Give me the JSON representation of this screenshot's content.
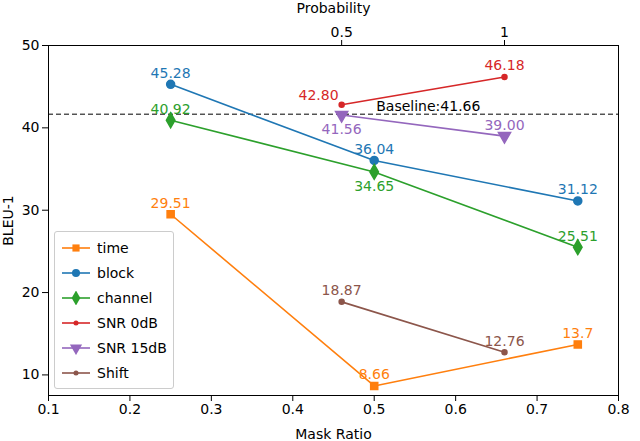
{
  "chart_data": {
    "type": "line",
    "x_label": "Mask Ratio",
    "x2_label": "Probability",
    "y_label": "BLEU-1",
    "xlim": [
      0.1,
      0.8
    ],
    "xticks": [
      0.1,
      0.2,
      0.3,
      0.4,
      0.5,
      0.6,
      0.7,
      0.8
    ],
    "x2lim": [
      -0.4,
      1.35
    ],
    "x2ticks": [
      0.5,
      1
    ],
    "ylim": [
      7.5,
      50
    ],
    "yticks": [
      10,
      20,
      30,
      40,
      50
    ],
    "grid": false,
    "legend": "lower left",
    "data_labels": true,
    "baseline": {
      "value": 41.66,
      "label": "Baseline:41.66",
      "line_style": "dashed"
    },
    "series": [
      {
        "name": "time",
        "color": "#ff7f0e",
        "marker": "square",
        "x": [
          0.25,
          0.5,
          0.75
        ],
        "values": [
          29.51,
          8.66,
          13.7
        ]
      },
      {
        "name": "block",
        "color": "#1f77b4",
        "marker": "circle",
        "x": [
          0.25,
          0.5,
          0.75
        ],
        "values": [
          45.28,
          36.04,
          31.12
        ]
      },
      {
        "name": "channel",
        "color": "#2ca02c",
        "marker": "diamond",
        "x": [
          0.25,
          0.5,
          0.75
        ],
        "values": [
          40.92,
          34.65,
          25.51
        ]
      },
      {
        "name": "SNR 0dB",
        "color": "#d62728",
        "marker": "point",
        "axis": "x2",
        "x": [
          0.5,
          1
        ],
        "values": [
          42.8,
          46.18
        ],
        "value_labels": [
          "42.80",
          "46.18"
        ]
      },
      {
        "name": "SNR 15dB",
        "color": "#9467bd",
        "marker": "triangle_down",
        "axis": "x2",
        "x": [
          0.5,
          1
        ],
        "values": [
          41.56,
          39.0
        ],
        "value_labels": [
          "41.56",
          "39.00"
        ]
      },
      {
        "name": "Shift",
        "color": "#8c564b",
        "marker": "point",
        "axis": "x2",
        "x": [
          0.5,
          1
        ],
        "values": [
          18.87,
          12.76
        ]
      }
    ]
  }
}
